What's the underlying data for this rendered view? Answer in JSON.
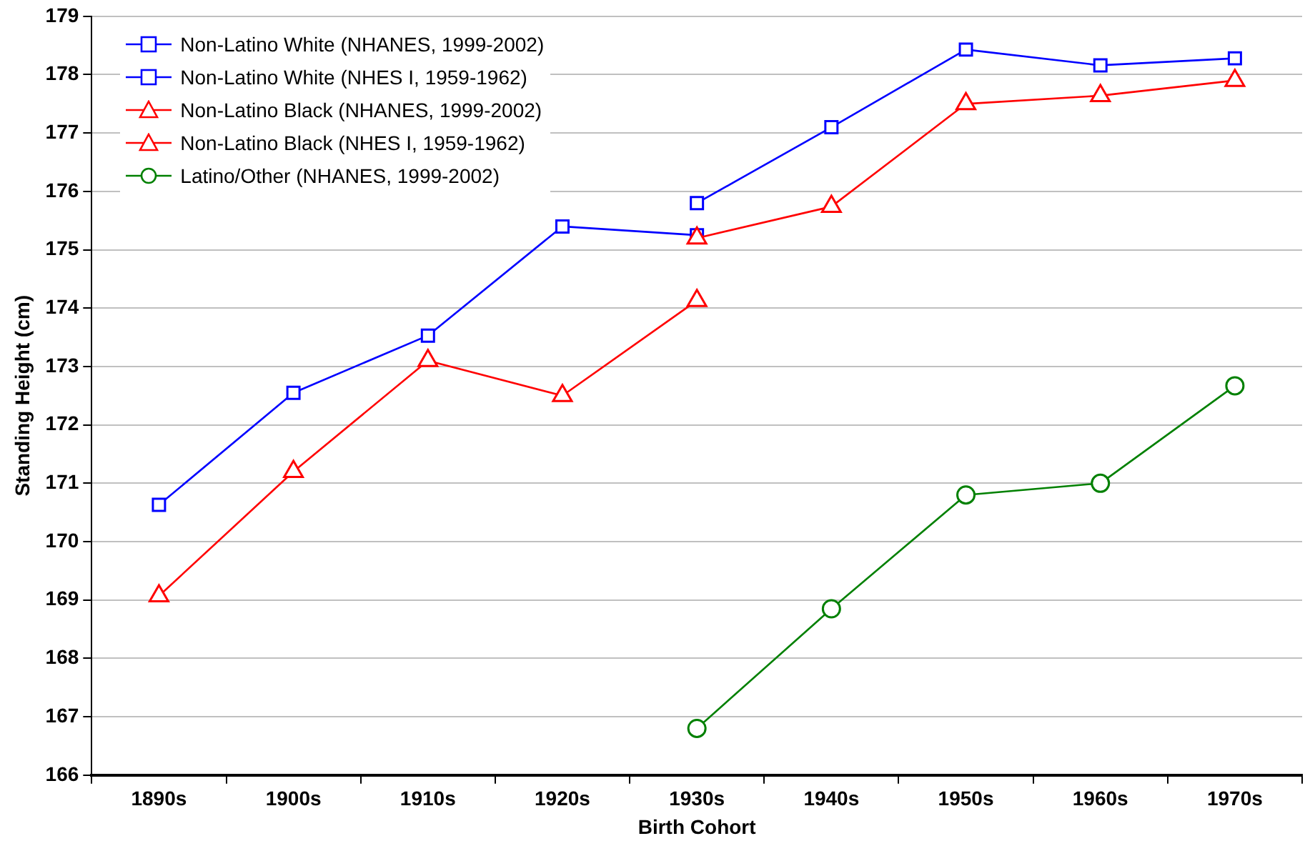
{
  "chart_data": {
    "type": "line",
    "xlabel": "Birth Cohort",
    "ylabel": "Standing Height (cm)",
    "categories": [
      "1890s",
      "1900s",
      "1910s",
      "1920s",
      "1930s",
      "1940s",
      "1950s",
      "1960s",
      "1970s"
    ],
    "ylim": [
      166,
      179
    ],
    "yticks": [
      166,
      167,
      168,
      169,
      170,
      171,
      172,
      173,
      174,
      175,
      176,
      177,
      178,
      179
    ],
    "grid": "y",
    "legend": "top left",
    "line_style": "solid",
    "series": [
      {
        "name": "Non-Latino White (NHANES, 1999-2002)",
        "color": "#0000ff",
        "marker": "square",
        "values": [
          null,
          null,
          null,
          null,
          175.8,
          177.1,
          178.43,
          178.16,
          178.28
        ]
      },
      {
        "name": "Non-Latino White (NHES I, 1959-1962)",
        "color": "#0000ff",
        "marker": "square",
        "values": [
          170.63,
          172.55,
          173.53,
          175.4,
          175.25,
          null,
          null,
          null,
          null
        ]
      },
      {
        "name": "Non-Latino Black (NHANES, 1999-2002)",
        "color": "#ff0000",
        "marker": "triangle",
        "values": [
          null,
          null,
          null,
          null,
          175.2,
          175.74,
          177.5,
          177.64,
          177.9
        ]
      },
      {
        "name": "Non-Latino Black (NHES I, 1959-1962)",
        "color": "#ff0000",
        "marker": "triangle",
        "values": [
          169.07,
          171.2,
          173.1,
          172.5,
          174.13,
          null,
          null,
          null,
          null
        ]
      },
      {
        "name": "Latino/Other (NHANES, 1999-2002)",
        "color": "#008000",
        "marker": "circle",
        "values": [
          null,
          null,
          null,
          null,
          166.8,
          168.85,
          170.8,
          171.0,
          172.67
        ]
      }
    ]
  }
}
